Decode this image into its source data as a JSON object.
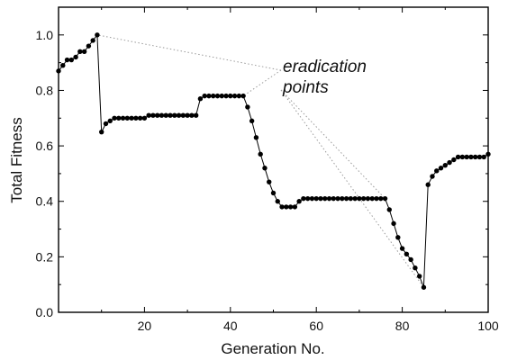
{
  "chart_data": {
    "type": "line",
    "xlabel": "Generation No.",
    "ylabel": "Total Fitness",
    "xlim": [
      0,
      100
    ],
    "ylim": [
      0,
      1.1
    ],
    "xticks": [
      20,
      40,
      60,
      80,
      100
    ],
    "yticks": [
      0.0,
      0.2,
      0.4,
      0.6,
      0.8,
      1.0
    ],
    "ytick_labels": [
      "0.0",
      "0.2",
      "0.4",
      "0.6",
      "0.8",
      "1.0"
    ],
    "grid": false,
    "annotation": {
      "lines": [
        "eradication",
        "points"
      ],
      "targets": [
        {
          "x": 9,
          "y": 1.0
        },
        {
          "x": 43,
          "y": 0.78
        },
        {
          "x": 76,
          "y": 0.41
        },
        {
          "x": 85,
          "y": 0.09
        }
      ]
    },
    "series": [
      {
        "x": [
          0,
          1,
          2,
          3,
          4,
          5,
          6,
          7,
          8,
          9,
          10,
          11,
          12,
          13,
          14,
          15,
          16,
          17,
          18,
          19,
          20,
          21,
          22,
          23,
          24,
          25,
          26,
          27,
          28,
          29,
          30,
          31,
          32,
          33,
          34,
          35,
          36,
          37,
          38,
          39,
          40,
          41,
          42,
          43,
          44,
          45,
          46,
          47,
          48,
          49,
          50,
          51,
          52,
          53,
          54,
          55,
          56,
          57,
          58,
          59,
          60,
          61,
          62,
          63,
          64,
          65,
          66,
          67,
          68,
          69,
          70,
          71,
          72,
          73,
          74,
          75,
          76,
          77,
          78,
          79,
          80,
          81,
          82,
          83,
          84,
          85,
          86,
          87,
          88,
          89,
          90,
          91,
          92,
          93,
          94,
          95,
          96,
          97,
          98,
          99,
          100
        ],
        "y": [
          0.87,
          0.89,
          0.91,
          0.91,
          0.92,
          0.94,
          0.94,
          0.96,
          0.98,
          1.0,
          0.65,
          0.68,
          0.69,
          0.7,
          0.7,
          0.7,
          0.7,
          0.7,
          0.7,
          0.7,
          0.7,
          0.71,
          0.71,
          0.71,
          0.71,
          0.71,
          0.71,
          0.71,
          0.71,
          0.71,
          0.71,
          0.71,
          0.71,
          0.77,
          0.78,
          0.78,
          0.78,
          0.78,
          0.78,
          0.78,
          0.78,
          0.78,
          0.78,
          0.78,
          0.74,
          0.69,
          0.63,
          0.57,
          0.52,
          0.47,
          0.43,
          0.4,
          0.38,
          0.38,
          0.38,
          0.38,
          0.4,
          0.41,
          0.41,
          0.41,
          0.41,
          0.41,
          0.41,
          0.41,
          0.41,
          0.41,
          0.41,
          0.41,
          0.41,
          0.41,
          0.41,
          0.41,
          0.41,
          0.41,
          0.41,
          0.41,
          0.41,
          0.37,
          0.32,
          0.27,
          0.23,
          0.21,
          0.19,
          0.16,
          0.13,
          0.09,
          0.46,
          0.49,
          0.51,
          0.52,
          0.53,
          0.54,
          0.55,
          0.56,
          0.56,
          0.56,
          0.56,
          0.56,
          0.56,
          0.56,
          0.57
        ]
      }
    ]
  }
}
